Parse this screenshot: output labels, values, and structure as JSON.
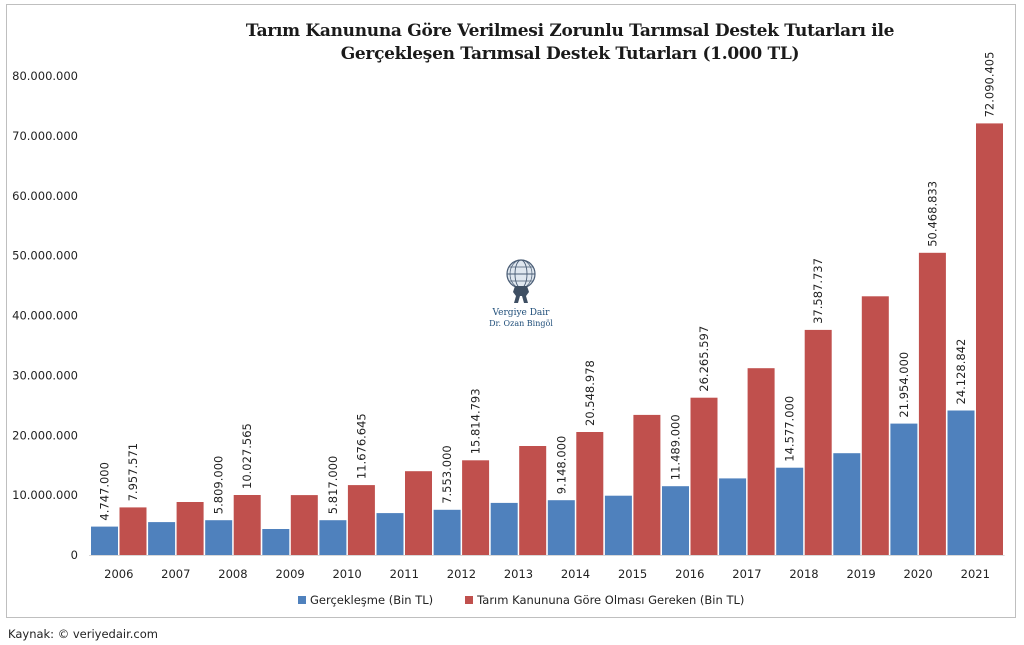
{
  "chart_data": {
    "type": "bar",
    "title": [
      "Tarım Kanununa Göre Verilmesi Zorunlu Tarımsal Destek Tutarları ile",
      "Gerçekleşen Tarımsal Destek Tutarları (1.000 TL)"
    ],
    "xlabel": "",
    "ylabel": "",
    "ylim": [
      0,
      80000000
    ],
    "yticks": [
      0,
      10000000,
      20000000,
      30000000,
      40000000,
      50000000,
      60000000,
      70000000,
      80000000
    ],
    "ytick_labels": [
      "0",
      "10.000.000",
      "20.000.000",
      "30.000.000",
      "40.000.000",
      "50.000.000",
      "60.000.000",
      "70.000.000",
      "80.000.000"
    ],
    "grid": false,
    "legend_position": "bottom",
    "categories": [
      "2006",
      "2007",
      "2008",
      "2009",
      "2010",
      "2011",
      "2012",
      "2013",
      "2014",
      "2015",
      "2016",
      "2017",
      "2018",
      "2019",
      "2020",
      "2021"
    ],
    "series": [
      {
        "name": "Gerçekleşme (Bin TL)",
        "color": "#4F81BD",
        "values": [
          4747000,
          5500000,
          5809000,
          4350000,
          5817000,
          7000000,
          7553000,
          8700000,
          9148000,
          9900000,
          11489000,
          12800000,
          14577000,
          17000000,
          21954000,
          24128842
        ],
        "labels": [
          "4.747.000",
          "",
          "5.809.000",
          "",
          "5.817.000",
          "",
          "7.553.000",
          "",
          "9.148.000",
          "",
          "11.489.000",
          "",
          "14.577.000",
          "",
          "21.954.000",
          "24.128.842"
        ]
      },
      {
        "name": "Tarım Kanununa Göre Olması Gereken (Bin TL)",
        "color": "#C0504D",
        "values": [
          7957571,
          8850000,
          10027565,
          10000000,
          11676645,
          14000000,
          15814793,
          18200000,
          20548978,
          23400000,
          26265597,
          31200000,
          37587737,
          43200000,
          50468833,
          72090405
        ],
        "labels": [
          "7.957.571",
          "",
          "10.027.565",
          "",
          "11.676.645",
          "",
          "15.814.793",
          "",
          "20.548.978",
          "",
          "26.265.597",
          "",
          "37.587.737",
          "",
          "50.468.833",
          "72.090.405"
        ]
      }
    ]
  },
  "logo": {
    "line1": "Vergiye Dair",
    "line2": "Dr. Ozan Bingöl"
  },
  "source": "Kaynak: © veriyedair.com"
}
